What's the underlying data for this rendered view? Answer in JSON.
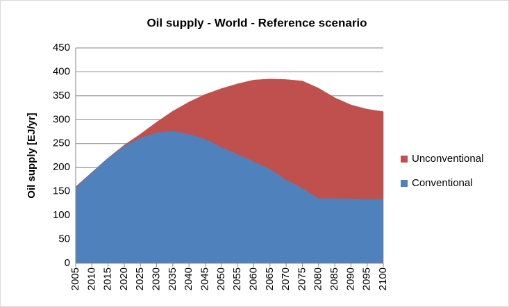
{
  "chart_data": {
    "type": "stacked_area",
    "title": "Oil supply - World - Reference scenario",
    "y_label": "Oil supply [EJ/yr]",
    "x": [
      2005,
      2010,
      2015,
      2020,
      2025,
      2030,
      2035,
      2040,
      2045,
      2050,
      2055,
      2060,
      2065,
      2070,
      2075,
      2080,
      2085,
      2090,
      2095,
      2100
    ],
    "xlim": [
      2005,
      2100
    ],
    "xticks": [
      2005,
      2010,
      2015,
      2020,
      2025,
      2030,
      2035,
      2040,
      2045,
      2050,
      2055,
      2060,
      2065,
      2070,
      2075,
      2080,
      2085,
      2090,
      2095,
      2100
    ],
    "series": [
      {
        "name": "Conventional",
        "color": "#4f81bd",
        "values": [
          158,
          190,
          220,
          245,
          262,
          273,
          277,
          270,
          260,
          243,
          228,
          213,
          197,
          175,
          157,
          136,
          136,
          135,
          134,
          134
        ]
      },
      {
        "name": "Unconventional",
        "color": "#c0504d",
        "values": [
          2,
          0,
          0,
          2,
          8,
          22,
          41,
          67,
          93,
          122,
          147,
          170,
          188,
          209,
          224,
          230,
          210,
          196,
          188,
          183
        ]
      }
    ],
    "ylim": [
      0,
      450
    ],
    "yticks": [
      0,
      50,
      100,
      150,
      200,
      250,
      300,
      350,
      400,
      450
    ],
    "grid": true,
    "legend": "right"
  }
}
